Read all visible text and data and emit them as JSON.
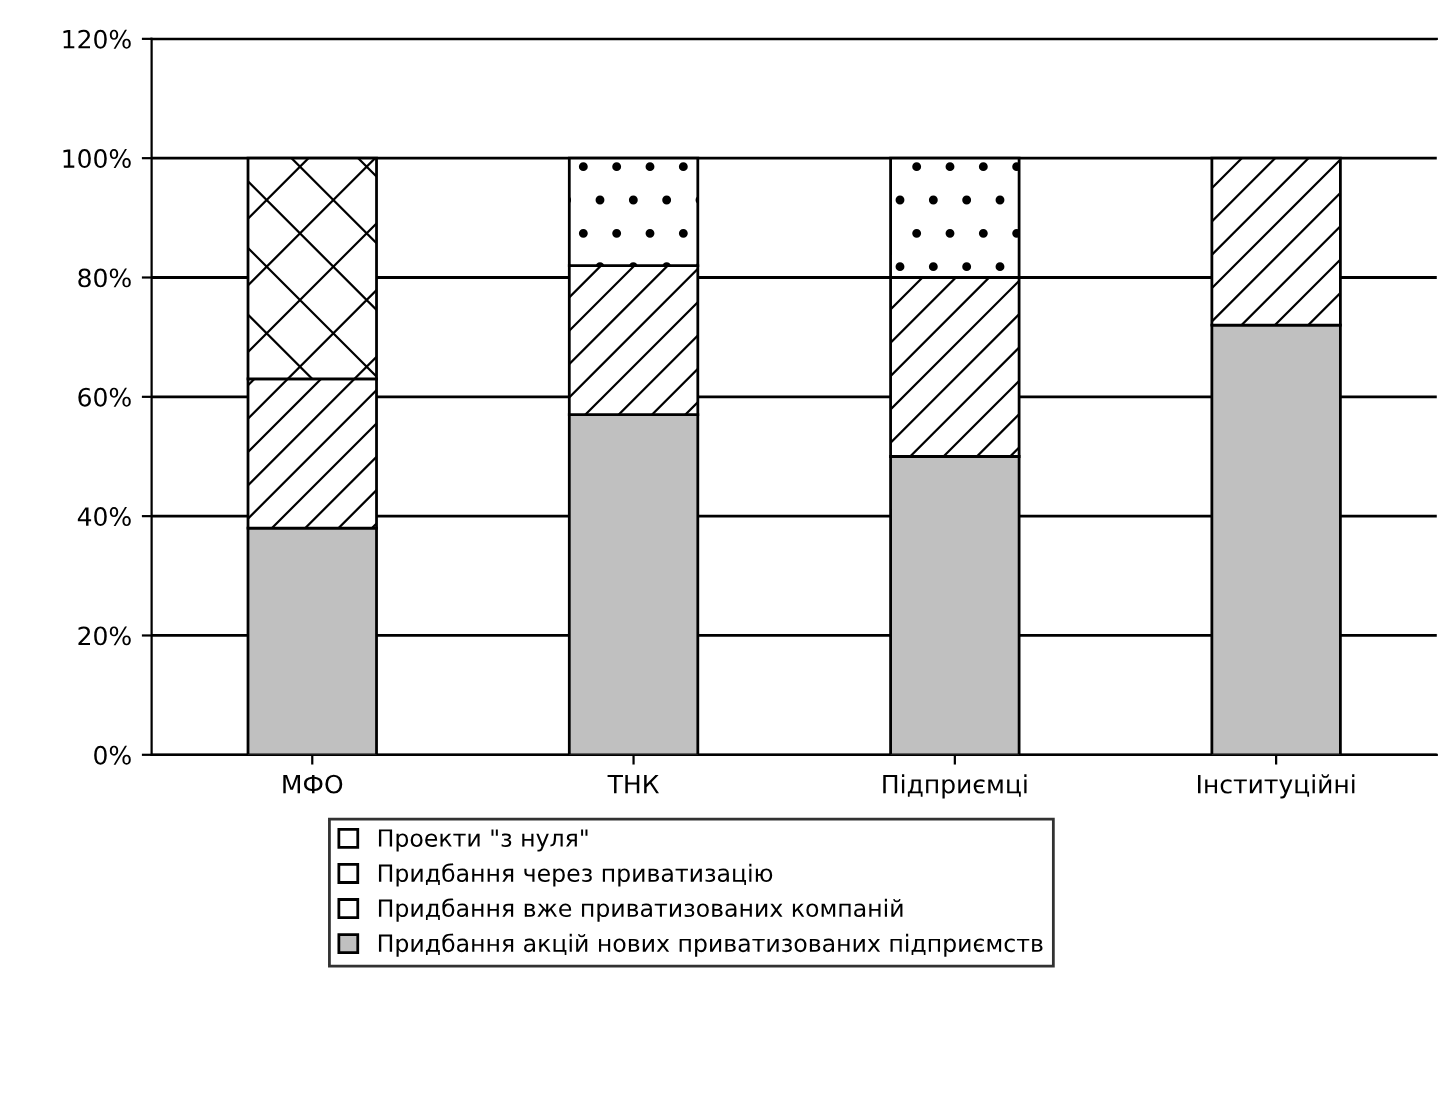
{
  "chart_data": {
    "type": "bar",
    "stacked": true,
    "categories": [
      "МФО",
      "ТНК",
      "Підприємці",
      "Інституційні"
    ],
    "series": [
      {
        "name": "Придбання акцій нових приватизованих підприємств",
        "color": "#c0c0c0",
        "values": [
          38,
          57,
          50,
          72
        ]
      },
      {
        "name": "Придбання вже приватизованих компаній",
        "color": "#ffffff",
        "values": [
          25,
          25,
          30,
          28
        ]
      },
      {
        "name": "Придбання через приватизацію",
        "color": "#ffffff",
        "values": [
          null,
          18,
          20,
          null
        ]
      },
      {
        "name": "Проекти \"з нуля\"",
        "color": "#ffffff",
        "values": [
          37,
          null,
          null,
          null
        ]
      }
    ],
    "ylim": [
      0,
      120
    ],
    "yticks": [
      {
        "value": 0,
        "label": "0%"
      },
      {
        "value": 20,
        "label": "20%"
      },
      {
        "value": 40,
        "label": "40%"
      },
      {
        "value": 60,
        "label": "60%"
      },
      {
        "value": 80,
        "label": "80%"
      },
      {
        "value": 100,
        "label": "100%"
      },
      {
        "value": 120,
        "label": "120%"
      }
    ],
    "grid": "y",
    "legend": "bottom"
  }
}
